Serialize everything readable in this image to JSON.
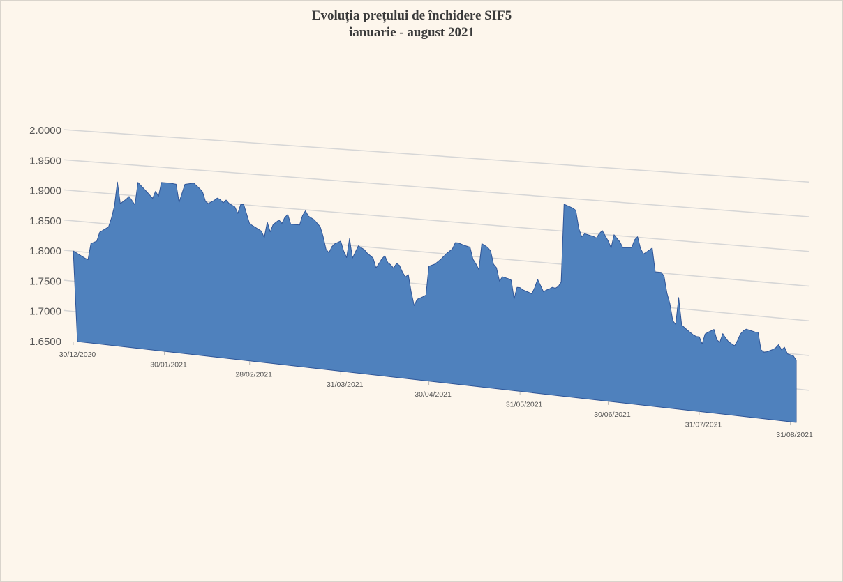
{
  "chart_data": {
    "type": "area",
    "title": "Evoluția prețului  de închidere  SIF5",
    "subtitle": "ianuarie  - august 2021",
    "ylim": [
      1.65,
      2.0
    ],
    "y_ticks": [
      "1.6500",
      "1.7000",
      "1.7500",
      "1.8000",
      "1.8500",
      "1.9000",
      "1.9500",
      "2.0000"
    ],
    "x_tick_labels": [
      "30/12/2020",
      "30/01/2021",
      "28/02/2021",
      "31/03/2021",
      "30/04/2021",
      "31/05/2021",
      "30/06/2021",
      "31/07/2021",
      "31/08/2021"
    ],
    "grid": true,
    "legend": "none",
    "color": "#4f81bd",
    "series": [
      {
        "values": [
          [
            0,
            1.8
          ],
          [
            4,
            1.79
          ],
          [
            5,
            1.788
          ],
          [
            6,
            1.815
          ],
          [
            8,
            1.82
          ],
          [
            9,
            1.835
          ],
          [
            12,
            1.845
          ],
          [
            13,
            1.86
          ],
          [
            14,
            1.88
          ],
          [
            15,
            1.92
          ],
          [
            16,
            1.885
          ],
          [
            18,
            1.893
          ],
          [
            19,
            1.898
          ],
          [
            21,
            1.885
          ],
          [
            22,
            1.922
          ],
          [
            25,
            1.908
          ],
          [
            27,
            1.898
          ],
          [
            28,
            1.91
          ],
          [
            29,
            1.902
          ],
          [
            30,
            1.925
          ],
          [
            33,
            1.925
          ],
          [
            35,
            1.924
          ],
          [
            36,
            1.895
          ],
          [
            37,
            1.91
          ],
          [
            38,
            1.925
          ],
          [
            41,
            1.928
          ],
          [
            43,
            1.92
          ],
          [
            44,
            1.915
          ],
          [
            45,
            1.9
          ],
          [
            46,
            1.897
          ],
          [
            47,
            1.9
          ],
          [
            48,
            1.903
          ],
          [
            49,
            1.907
          ],
          [
            50,
            1.905
          ],
          [
            51,
            1.9
          ],
          [
            52,
            1.905
          ],
          [
            53,
            1.9
          ],
          [
            55,
            1.895
          ],
          [
            56,
            1.885
          ],
          [
            57,
            1.9
          ],
          [
            58,
            1.9
          ],
          [
            60,
            1.87
          ],
          [
            64,
            1.86
          ],
          [
            65,
            1.85
          ],
          [
            66,
            1.875
          ],
          [
            67,
            1.86
          ],
          [
            68,
            1.872
          ],
          [
            70,
            1.88
          ],
          [
            71,
            1.875
          ],
          [
            72,
            1.885
          ],
          [
            73,
            1.89
          ],
          [
            74,
            1.875
          ],
          [
            77,
            1.875
          ],
          [
            78,
            1.89
          ],
          [
            79,
            1.898
          ],
          [
            80,
            1.89
          ],
          [
            82,
            1.885
          ],
          [
            83,
            1.88
          ],
          [
            84,
            1.875
          ],
          [
            85,
            1.86
          ],
          [
            86,
            1.84
          ],
          [
            87,
            1.835
          ],
          [
            88,
            1.845
          ],
          [
            89,
            1.85
          ],
          [
            91,
            1.855
          ],
          [
            92,
            1.84
          ],
          [
            93,
            1.83
          ],
          [
            94,
            1.86
          ],
          [
            95,
            1.83
          ],
          [
            96,
            1.84
          ],
          [
            97,
            1.85
          ],
          [
            99,
            1.845
          ],
          [
            100,
            1.84
          ],
          [
            102,
            1.833
          ],
          [
            103,
            1.818
          ],
          [
            104,
            1.825
          ],
          [
            105,
            1.833
          ],
          [
            106,
            1.838
          ],
          [
            107,
            1.828
          ],
          [
            108,
            1.825
          ],
          [
            109,
            1.82
          ],
          [
            110,
            1.828
          ],
          [
            111,
            1.825
          ],
          [
            112,
            1.815
          ],
          [
            113,
            1.808
          ],
          [
            114,
            1.812
          ],
          [
            115,
            1.785
          ],
          [
            116,
            1.765
          ],
          [
            117,
            1.775
          ],
          [
            119,
            1.78
          ],
          [
            120,
            1.783
          ],
          [
            121,
            1.828
          ],
          [
            122,
            1.83
          ],
          [
            123,
            1.832
          ],
          [
            125,
            1.84
          ],
          [
            127,
            1.85
          ],
          [
            129,
            1.858
          ],
          [
            130,
            1.868
          ],
          [
            131,
            1.868
          ],
          [
            133,
            1.865
          ],
          [
            135,
            1.863
          ],
          [
            136,
            1.845
          ],
          [
            137,
            1.838
          ],
          [
            138,
            1.83
          ],
          [
            139,
            1.87
          ],
          [
            141,
            1.865
          ],
          [
            142,
            1.86
          ],
          [
            143,
            1.84
          ],
          [
            144,
            1.835
          ],
          [
            145,
            1.815
          ],
          [
            146,
            1.822
          ],
          [
            148,
            1.82
          ],
          [
            149,
            1.818
          ],
          [
            150,
            1.79
          ],
          [
            151,
            1.808
          ],
          [
            152,
            1.808
          ],
          [
            153,
            1.805
          ],
          [
            155,
            1.802
          ],
          [
            156,
            1.8
          ],
          [
            157,
            1.81
          ],
          [
            158,
            1.823
          ],
          [
            160,
            1.805
          ],
          [
            161,
            1.808
          ],
          [
            162,
            1.81
          ],
          [
            163,
            1.813
          ],
          [
            164,
            1.812
          ],
          [
            165,
            1.815
          ],
          [
            166,
            1.822
          ],
          [
            167,
            1.94
          ],
          [
            170,
            1.935
          ],
          [
            171,
            1.932
          ],
          [
            172,
            1.905
          ],
          [
            173,
            1.893
          ],
          [
            174,
            1.898
          ],
          [
            177,
            1.895
          ],
          [
            178,
            1.893
          ],
          [
            179,
            1.9
          ],
          [
            180,
            1.905
          ],
          [
            182,
            1.89
          ],
          [
            183,
            1.88
          ],
          [
            184,
            1.9
          ],
          [
            185,
            1.895
          ],
          [
            186,
            1.89
          ],
          [
            187,
            1.882
          ],
          [
            190,
            1.883
          ],
          [
            191,
            1.895
          ],
          [
            192,
            1.9
          ],
          [
            193,
            1.883
          ],
          [
            194,
            1.875
          ],
          [
            195,
            1.878
          ],
          [
            197,
            1.885
          ],
          [
            198,
            1.85
          ],
          [
            200,
            1.85
          ],
          [
            201,
            1.845
          ],
          [
            202,
            1.82
          ],
          [
            203,
            1.805
          ],
          [
            204,
            1.78
          ],
          [
            205,
            1.775
          ],
          [
            206,
            1.815
          ],
          [
            207,
            1.775
          ],
          [
            209,
            1.768
          ],
          [
            210,
            1.765
          ],
          [
            211,
            1.762
          ],
          [
            212,
            1.76
          ],
          [
            213,
            1.76
          ],
          [
            214,
            1.75
          ],
          [
            215,
            1.765
          ],
          [
            216,
            1.768
          ],
          [
            218,
            1.773
          ],
          [
            219,
            1.758
          ],
          [
            220,
            1.755
          ],
          [
            221,
            1.768
          ],
          [
            222,
            1.762
          ],
          [
            223,
            1.757
          ],
          [
            225,
            1.752
          ],
          [
            226,
            1.76
          ],
          [
            227,
            1.77
          ],
          [
            228,
            1.775
          ],
          [
            229,
            1.778
          ],
          [
            232,
            1.775
          ],
          [
            233,
            1.775
          ],
          [
            234,
            1.75
          ],
          [
            235,
            1.747
          ],
          [
            236,
            1.748
          ],
          [
            238,
            1.752
          ],
          [
            239,
            1.755
          ],
          [
            240,
            1.76
          ],
          [
            241,
            1.753
          ],
          [
            242,
            1.757
          ],
          [
            243,
            1.748
          ],
          [
            245,
            1.746
          ],
          [
            246,
            1.74
          ]
        ]
      }
    ]
  }
}
